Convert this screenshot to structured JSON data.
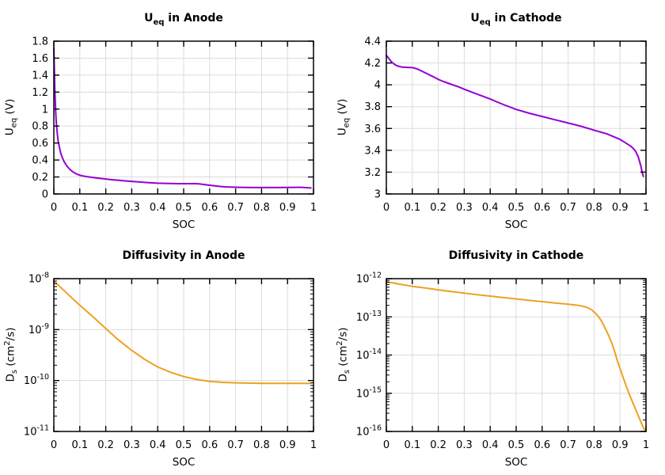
{
  "figure": {
    "background": "#ffffff",
    "grid_color": "#dcdcdc",
    "axis_color": "#000000",
    "text_color": "#000000"
  },
  "chart_data": [
    {
      "id": "ueq-anode",
      "type": "line",
      "title": {
        "p1": "U",
        "sub": "eq",
        "p2": " in Anode"
      },
      "xlabel": "SOC",
      "ylabel": {
        "p1": "U",
        "sub": "eq",
        "p2": " (V)",
        "sup": "",
        "p3": ""
      },
      "color": "#9400d3",
      "y_scale": "linear",
      "x_range": [
        0,
        1
      ],
      "y_range": [
        0,
        1.8
      ],
      "x_ticks": {
        "values": [
          0,
          0.1,
          0.2,
          0.3,
          0.4,
          0.5,
          0.6,
          0.7,
          0.8,
          0.9,
          1
        ],
        "labels": [
          "0",
          "0.1",
          "0.2",
          "0.3",
          "0.4",
          "0.5",
          "0.6",
          "0.7",
          "0.8",
          "0.9",
          "1"
        ]
      },
      "y_ticks": {
        "values": [
          0,
          0.2,
          0.4,
          0.6,
          0.8,
          1,
          1.2,
          1.4,
          1.6,
          1.8
        ],
        "labels": [
          "0",
          "0.2",
          "0.4",
          "0.6",
          "0.8",
          "1",
          "1.2",
          "1.4",
          "1.6",
          "1.8"
        ]
      },
      "points": [
        [
          0,
          1.72
        ],
        [
          0.002,
          1.45
        ],
        [
          0.004,
          1.22
        ],
        [
          0.006,
          1.05
        ],
        [
          0.008,
          0.92
        ],
        [
          0.01,
          0.82
        ],
        [
          0.013,
          0.72
        ],
        [
          0.016,
          0.64
        ],
        [
          0.02,
          0.57
        ],
        [
          0.025,
          0.5
        ],
        [
          0.03,
          0.45
        ],
        [
          0.035,
          0.41
        ],
        [
          0.04,
          0.38
        ],
        [
          0.05,
          0.33
        ],
        [
          0.06,
          0.295
        ],
        [
          0.07,
          0.268
        ],
        [
          0.08,
          0.248
        ],
        [
          0.09,
          0.232
        ],
        [
          0.1,
          0.22
        ],
        [
          0.12,
          0.207
        ],
        [
          0.14,
          0.198
        ],
        [
          0.16,
          0.19
        ],
        [
          0.18,
          0.183
        ],
        [
          0.2,
          0.176
        ],
        [
          0.22,
          0.169
        ],
        [
          0.25,
          0.161
        ],
        [
          0.28,
          0.153
        ],
        [
          0.3,
          0.148
        ],
        [
          0.33,
          0.141
        ],
        [
          0.36,
          0.134
        ],
        [
          0.4,
          0.127
        ],
        [
          0.44,
          0.123
        ],
        [
          0.48,
          0.121
        ],
        [
          0.52,
          0.121
        ],
        [
          0.54,
          0.122
        ],
        [
          0.56,
          0.118
        ],
        [
          0.58,
          0.111
        ],
        [
          0.6,
          0.103
        ],
        [
          0.62,
          0.095
        ],
        [
          0.64,
          0.089
        ],
        [
          0.66,
          0.084
        ],
        [
          0.68,
          0.081
        ],
        [
          0.7,
          0.079
        ],
        [
          0.74,
          0.077
        ],
        [
          0.78,
          0.076
        ],
        [
          0.82,
          0.076
        ],
        [
          0.86,
          0.076
        ],
        [
          0.9,
          0.077
        ],
        [
          0.94,
          0.078
        ],
        [
          0.96,
          0.077
        ],
        [
          0.98,
          0.073
        ],
        [
          0.99,
          0.071
        ]
      ]
    },
    {
      "id": "ueq-cathode",
      "type": "line",
      "title": {
        "p1": "U",
        "sub": "eq",
        "p2": " in Cathode"
      },
      "xlabel": "SOC",
      "ylabel": {
        "p1": "U",
        "sub": "eq",
        "p2": " (V)",
        "sup": "",
        "p3": ""
      },
      "color": "#9400d3",
      "y_scale": "linear",
      "x_range": [
        0,
        1
      ],
      "y_range": [
        3,
        4.4
      ],
      "x_ticks": {
        "values": [
          0,
          0.1,
          0.2,
          0.3,
          0.4,
          0.5,
          0.6,
          0.7,
          0.8,
          0.9,
          1
        ],
        "labels": [
          "0",
          "0.1",
          "0.2",
          "0.3",
          "0.4",
          "0.5",
          "0.6",
          "0.7",
          "0.8",
          "0.9",
          "1"
        ]
      },
      "y_ticks": {
        "values": [
          3,
          3.2,
          3.4,
          3.6,
          3.8,
          4,
          4.2,
          4.4
        ],
        "labels": [
          "3",
          "3.2",
          "3.4",
          "3.6",
          "3.8",
          "4",
          "4.2",
          "4.4"
        ]
      },
      "points": [
        [
          0,
          4.27
        ],
        [
          0.01,
          4.24
        ],
        [
          0.02,
          4.21
        ],
        [
          0.03,
          4.19
        ],
        [
          0.04,
          4.175
        ],
        [
          0.05,
          4.168
        ],
        [
          0.06,
          4.163
        ],
        [
          0.08,
          4.16
        ],
        [
          0.1,
          4.158
        ],
        [
          0.12,
          4.145
        ],
        [
          0.15,
          4.11
        ],
        [
          0.18,
          4.075
        ],
        [
          0.2,
          4.05
        ],
        [
          0.22,
          4.03
        ],
        [
          0.25,
          4.005
        ],
        [
          0.28,
          3.98
        ],
        [
          0.3,
          3.96
        ],
        [
          0.35,
          3.915
        ],
        [
          0.4,
          3.87
        ],
        [
          0.45,
          3.82
        ],
        [
          0.5,
          3.775
        ],
        [
          0.55,
          3.74
        ],
        [
          0.6,
          3.71
        ],
        [
          0.65,
          3.68
        ],
        [
          0.7,
          3.65
        ],
        [
          0.75,
          3.62
        ],
        [
          0.8,
          3.585
        ],
        [
          0.85,
          3.55
        ],
        [
          0.88,
          3.52
        ],
        [
          0.9,
          3.5
        ],
        [
          0.92,
          3.47
        ],
        [
          0.94,
          3.44
        ],
        [
          0.95,
          3.42
        ],
        [
          0.96,
          3.39
        ],
        [
          0.97,
          3.34
        ],
        [
          0.98,
          3.26
        ],
        [
          0.985,
          3.2
        ],
        [
          0.99,
          3.16
        ]
      ]
    },
    {
      "id": "diffusivity-anode",
      "type": "line",
      "title": {
        "p1": "Diffusivity in Anode",
        "sub": "",
        "p2": ""
      },
      "xlabel": "SOC",
      "ylabel": {
        "p1": "D",
        "sub": "s",
        "p2": " (cm",
        "sup": "2",
        "p3": "/s)"
      },
      "color": "#eda120",
      "y_scale": "log",
      "x_range": [
        0,
        1
      ],
      "y_exp_range": [
        -11,
        -8
      ],
      "x_ticks": {
        "values": [
          0,
          0.1,
          0.2,
          0.3,
          0.4,
          0.5,
          0.6,
          0.7,
          0.8,
          0.9,
          1
        ],
        "labels": [
          "0",
          "0.1",
          "0.2",
          "0.3",
          "0.4",
          "0.5",
          "0.6",
          "0.7",
          "0.8",
          "0.9",
          "1"
        ]
      },
      "y_ticks": {
        "exponents": [
          -11,
          -10,
          -9,
          -8
        ],
        "base": "10",
        "exp_labels": [
          "-11",
          "-10",
          "-9",
          "-8"
        ]
      },
      "points": [
        [
          0,
          9e-09
        ],
        [
          0.05,
          5.2e-09
        ],
        [
          0.1,
          3e-09
        ],
        [
          0.15,
          1.8e-09
        ],
        [
          0.2,
          1.05e-09
        ],
        [
          0.25,
          6.2e-10
        ],
        [
          0.3,
          3.9e-10
        ],
        [
          0.35,
          2.6e-10
        ],
        [
          0.4,
          1.85e-10
        ],
        [
          0.45,
          1.45e-10
        ],
        [
          0.5,
          1.2e-10
        ],
        [
          0.55,
          1.05e-10
        ],
        [
          0.6,
          9.6e-11
        ],
        [
          0.65,
          9.2e-11
        ],
        [
          0.7,
          9e-11
        ],
        [
          0.75,
          8.9e-11
        ],
        [
          0.8,
          8.8e-11
        ],
        [
          0.85,
          8.8e-11
        ],
        [
          0.9,
          8.8e-11
        ],
        [
          0.95,
          8.8e-11
        ],
        [
          0.99,
          8.8e-11
        ]
      ]
    },
    {
      "id": "diffusivity-cathode",
      "type": "line",
      "title": {
        "p1": "Diffusivity in Cathode",
        "sub": "",
        "p2": ""
      },
      "xlabel": "SOC",
      "ylabel": {
        "p1": "D",
        "sub": "s",
        "p2": " (cm",
        "sup": "2",
        "p3": "/s)"
      },
      "color": "#eda120",
      "y_scale": "log",
      "x_range": [
        0,
        1
      ],
      "y_exp_range": [
        -16,
        -12
      ],
      "x_ticks": {
        "values": [
          0,
          0.1,
          0.2,
          0.3,
          0.4,
          0.5,
          0.6,
          0.7,
          0.8,
          0.9,
          1
        ],
        "labels": [
          "0",
          "0.1",
          "0.2",
          "0.3",
          "0.4",
          "0.5",
          "0.6",
          "0.7",
          "0.8",
          "0.9",
          "1"
        ]
      },
      "y_ticks": {
        "exponents": [
          -16,
          -15,
          -14,
          -13,
          -12
        ],
        "base": "10",
        "exp_labels": [
          "-16",
          "-15",
          "-14",
          "-13",
          "-12"
        ]
      },
      "points": [
        [
          0,
          8.3e-13
        ],
        [
          0.05,
          7.2e-13
        ],
        [
          0.1,
          6.3e-13
        ],
        [
          0.15,
          5.7e-13
        ],
        [
          0.2,
          5.1e-13
        ],
        [
          0.25,
          4.6e-13
        ],
        [
          0.3,
          4.2e-13
        ],
        [
          0.35,
          3.8e-13
        ],
        [
          0.4,
          3.5e-13
        ],
        [
          0.45,
          3.2e-13
        ],
        [
          0.5,
          2.95e-13
        ],
        [
          0.55,
          2.7e-13
        ],
        [
          0.6,
          2.5e-13
        ],
        [
          0.65,
          2.3e-13
        ],
        [
          0.7,
          2.15e-13
        ],
        [
          0.74,
          2e-13
        ],
        [
          0.77,
          1.8e-13
        ],
        [
          0.79,
          1.55e-13
        ],
        [
          0.8,
          1.35e-13
        ],
        [
          0.81,
          1.15e-13
        ],
        [
          0.82,
          9.5e-14
        ],
        [
          0.83,
          7.5e-14
        ],
        [
          0.84,
          5.5e-14
        ],
        [
          0.85,
          4e-14
        ],
        [
          0.86,
          2.8e-14
        ],
        [
          0.87,
          1.9e-14
        ],
        [
          0.88,
          1.2e-14
        ],
        [
          0.89,
          7e-15
        ],
        [
          0.9,
          4.5e-15
        ],
        [
          0.91,
          2.8e-15
        ],
        [
          0.92,
          1.8e-15
        ],
        [
          0.93,
          1.2e-15
        ],
        [
          0.94,
          8e-16
        ],
        [
          0.95,
          5.5e-16
        ],
        [
          0.96,
          3.8e-16
        ],
        [
          0.97,
          2.6e-16
        ],
        [
          0.98,
          1.8e-16
        ],
        [
          0.99,
          1.25e-16
        ],
        [
          1,
          1e-16
        ]
      ]
    }
  ]
}
